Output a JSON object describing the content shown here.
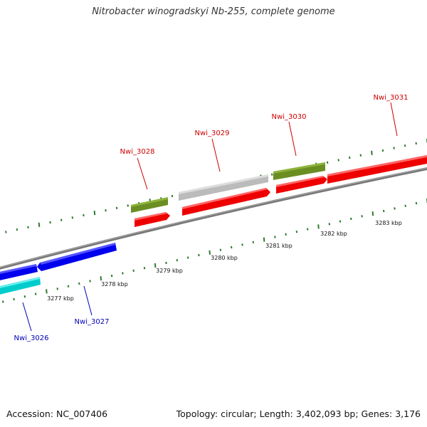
{
  "title": "Nitrobacter winogradskyi Nb-255, complete genome",
  "footer": {
    "accession": "Accession: NC_007406",
    "summary": "Topology: circular; Length: 3,402,093 bp; Genes: 3,176"
  },
  "colors": {
    "forward_gene": "#ee0000",
    "forward_other": "#bbbbbb",
    "forward_rna": "#6b8e23",
    "reverse_gene": "#0000ee",
    "reverse_rna": "#00cccc",
    "tick": "#2f7a2f",
    "backbone": "#777777",
    "label_forward": "#cc0000",
    "label_reverse": "#0000bb"
  },
  "scale_labels": [
    "3277 kbp",
    "3278 kbp",
    "3279 kbp",
    "3280 kbp",
    "3281 kbp",
    "3282 kbp",
    "3283 kbp"
  ],
  "genes": [
    {
      "name": "Nwi_3026",
      "strand": "reverse"
    },
    {
      "name": "Nwi_3027",
      "strand": "reverse"
    },
    {
      "name": "Nwi_3028",
      "strand": "forward"
    },
    {
      "name": "Nwi_3029",
      "strand": "forward"
    },
    {
      "name": "Nwi_3030",
      "strand": "forward"
    },
    {
      "name": "Nwi_3031",
      "strand": "forward"
    }
  ]
}
